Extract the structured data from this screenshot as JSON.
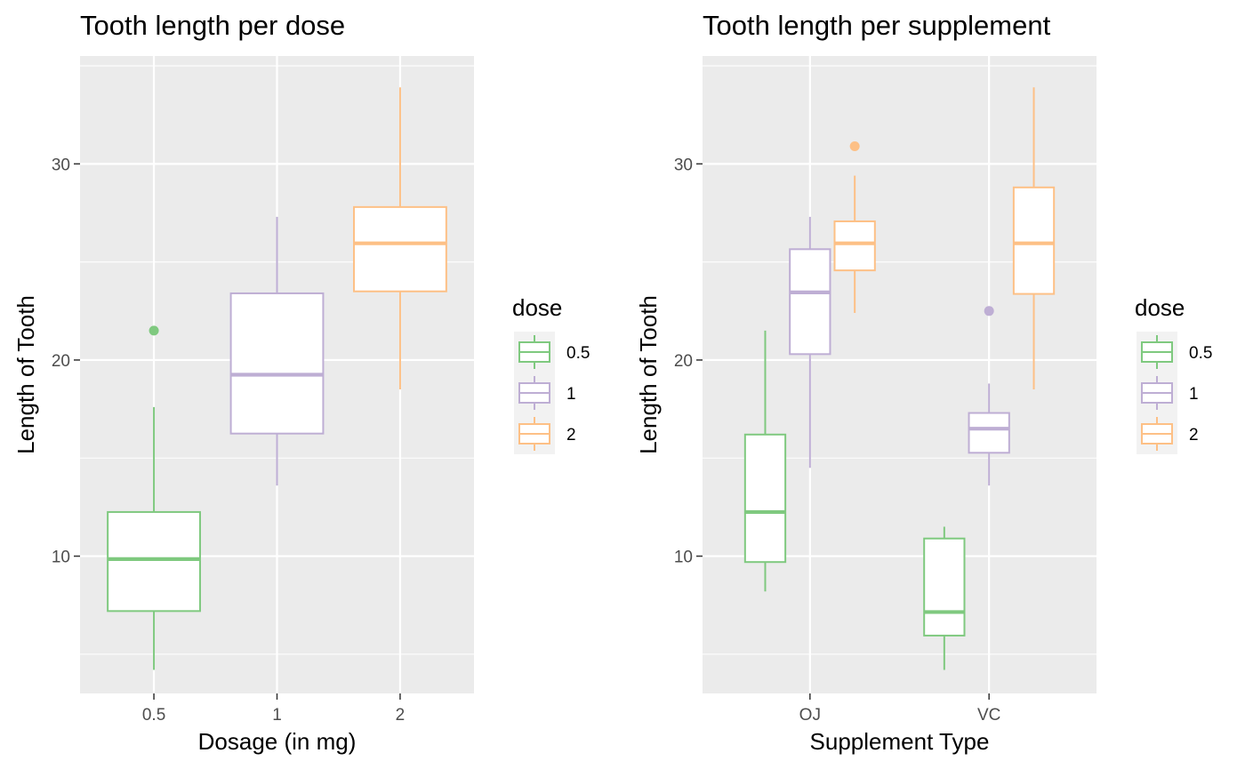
{
  "chart_data": [
    {
      "type": "box",
      "title": "Tooth length per dose",
      "xlabel": "Dosage (in mg)",
      "ylabel": "Length of Tooth",
      "categories": [
        "0.5",
        "1",
        "2"
      ],
      "ylim": [
        3,
        35.5
      ],
      "yticks": [
        10,
        20,
        30
      ],
      "grid": true,
      "legend": {
        "title": "dose",
        "position": "right",
        "entries": [
          "0.5",
          "1",
          "2"
        ]
      },
      "series": [
        {
          "name": "0.5",
          "color": "#7fc97f",
          "boxes": [
            {
              "category": "0.5",
              "min": 4.2,
              "q1": 7.2,
              "median": 9.85,
              "q3": 12.25,
              "max": 17.6,
              "outliers": [
                21.5
              ]
            }
          ]
        },
        {
          "name": "1",
          "color": "#beaed4",
          "boxes": [
            {
              "category": "1",
              "min": 13.6,
              "q1": 16.25,
              "median": 19.25,
              "q3": 23.4,
              "max": 27.3,
              "outliers": []
            }
          ]
        },
        {
          "name": "2",
          "color": "#fdc086",
          "boxes": [
            {
              "category": "2",
              "min": 18.5,
              "q1": 23.5,
              "median": 25.95,
              "q3": 27.8,
              "max": 33.9,
              "outliers": []
            }
          ]
        }
      ]
    },
    {
      "type": "box",
      "title": "Tooth length per supplement",
      "xlabel": "Supplement Type",
      "ylabel": "Length of Tooth",
      "categories": [
        "OJ",
        "VC"
      ],
      "ylim": [
        3,
        35.5
      ],
      "yticks": [
        10,
        20,
        30
      ],
      "grid": true,
      "legend": {
        "title": "dose",
        "position": "right",
        "entries": [
          "0.5",
          "1",
          "2"
        ]
      },
      "series": [
        {
          "name": "0.5",
          "color": "#7fc97f",
          "boxes": [
            {
              "category": "OJ",
              "min": 8.2,
              "q1": 9.7,
              "median": 12.25,
              "q3": 16.2,
              "max": 21.5,
              "outliers": []
            },
            {
              "category": "VC",
              "min": 4.2,
              "q1": 5.95,
              "median": 7.15,
              "q3": 10.9,
              "max": 11.5,
              "outliers": []
            }
          ]
        },
        {
          "name": "1",
          "color": "#beaed4",
          "boxes": [
            {
              "category": "OJ",
              "min": 14.5,
              "q1": 20.3,
              "median": 23.45,
              "q3": 25.65,
              "max": 27.3,
              "outliers": []
            },
            {
              "category": "VC",
              "min": 13.6,
              "q1": 15.27,
              "median": 16.5,
              "q3": 17.3,
              "max": 18.8,
              "outliers": [
                22.5
              ]
            }
          ]
        },
        {
          "name": "2",
          "color": "#fdc086",
          "boxes": [
            {
              "category": "OJ",
              "min": 22.4,
              "q1": 24.57,
              "median": 25.95,
              "q3": 27.07,
              "max": 29.4,
              "outliers": [
                30.9
              ]
            },
            {
              "category": "VC",
              "min": 18.5,
              "q1": 23.37,
              "median": 25.95,
              "q3": 28.8,
              "max": 33.9,
              "outliers": []
            }
          ]
        }
      ]
    }
  ]
}
